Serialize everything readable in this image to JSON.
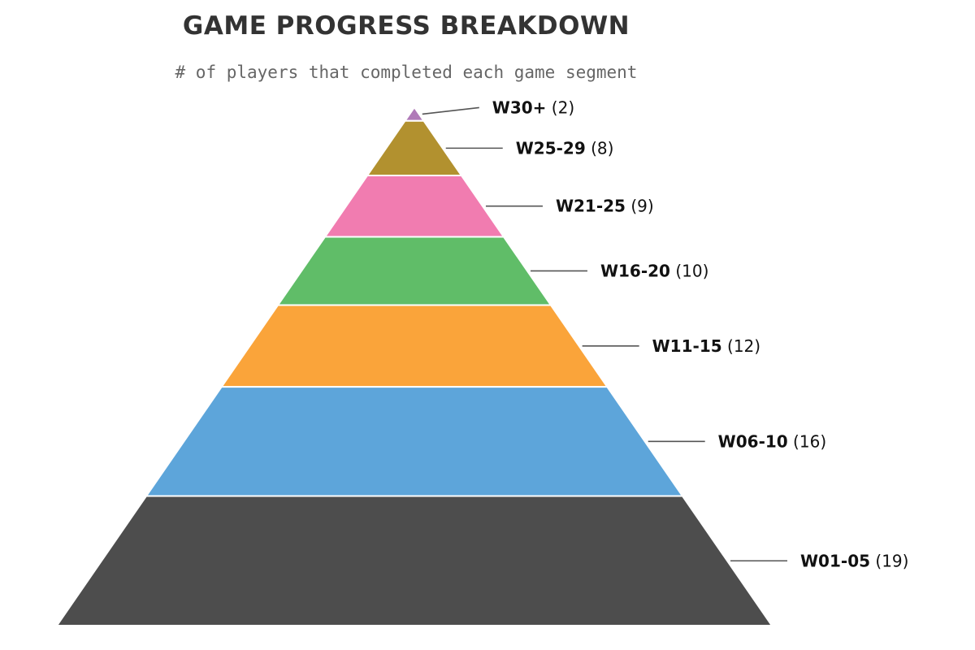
{
  "chart_data": {
    "type": "pyramid",
    "title": "GAME PROGRESS BREAKDOWN",
    "subtitle": "# of players that completed each game segment",
    "segments": [
      {
        "name": "W30+",
        "value": 2,
        "value_text": "(2)",
        "color": "#b07ab8"
      },
      {
        "name": "W25-29",
        "value": 8,
        "value_text": "(8)",
        "color": "#b2912f"
      },
      {
        "name": "W21-25",
        "value": 9,
        "value_text": "(9)",
        "color": "#f17cb0"
      },
      {
        "name": "W16-20",
        "value": 10,
        "value_text": "(10)",
        "color": "#60bd68"
      },
      {
        "name": "W11-15",
        "value": 12,
        "value_text": "(12)",
        "color": "#faa43a"
      },
      {
        "name": "W06-10",
        "value": 16,
        "value_text": "(16)",
        "color": "#5da5da"
      },
      {
        "name": "W01-05",
        "value": 19,
        "value_text": "(19)",
        "color": "#4d4d4d"
      }
    ],
    "leader_color": "#555555"
  }
}
